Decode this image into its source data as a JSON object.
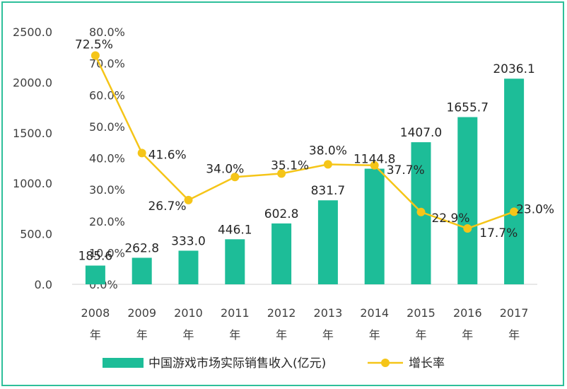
{
  "chart_data": {
    "type": "bar",
    "categories": [
      "2008\n年",
      "2009\n年",
      "2010\n年",
      "2011\n年",
      "2012\n年",
      "2013\n年",
      "2014\n年",
      "2015\n年",
      "2016\n年",
      "2017\n年"
    ],
    "series": [
      {
        "name": "中国游戏市场实际销售收入(亿元)",
        "kind": "bar",
        "axis": "left",
        "values": [
          185.6,
          262.8,
          333.0,
          446.1,
          602.8,
          831.7,
          1144.8,
          1407.0,
          1655.7,
          2036.1
        ],
        "labels": [
          "185.6",
          "262.8",
          "333.0",
          "446.1",
          "602.8",
          "831.7",
          "1144.8",
          "1407.0",
          "1655.7",
          "2036.1"
        ]
      },
      {
        "name": "增长率",
        "kind": "line",
        "axis": "right",
        "values": [
          72.5,
          41.6,
          26.7,
          34.0,
          35.1,
          38.0,
          37.7,
          22.9,
          17.7,
          23.0
        ],
        "labels": [
          "72.5%",
          "41.6%",
          "26.7%",
          "34.0%",
          "35.1%",
          "38.0%",
          "37.7%",
          "22.9%",
          "17.7%",
          "23.0%"
        ]
      }
    ],
    "y_left": {
      "ticks": [
        "0.0",
        "500.0",
        "1000.0",
        "1500.0",
        "2000.0",
        "2500.0"
      ],
      "ylim": [
        0,
        2500
      ]
    },
    "y_right": {
      "ticks": [
        "0.0%",
        "10.0%",
        "20.0%",
        "30.0%",
        "40.0%",
        "50.0%",
        "60.0%",
        "70.0%",
        "80.0%"
      ],
      "ylim": [
        0,
        80
      ]
    },
    "colors": {
      "bar": "#1dbd98",
      "line": "#f5c518",
      "border": "#2ebf9a"
    },
    "grid": false,
    "legend_position": "bottom"
  }
}
